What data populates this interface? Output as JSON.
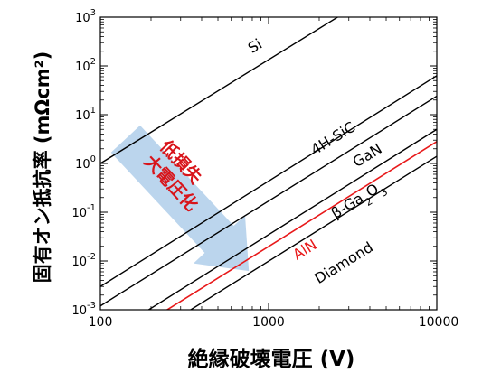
{
  "chart_data": {
    "type": "line",
    "title": "",
    "xlabel": "絶縁破壊電圧 (V)",
    "ylabel": "固有オン抵抗率 (mΩcm²)",
    "xscale": "log",
    "yscale": "log",
    "xlim": [
      100,
      10000
    ],
    "ylim": [
      0.001,
      1000
    ],
    "x_ticks": [
      {
        "value": 100,
        "label": "100"
      },
      {
        "value": 1000,
        "label": "1000"
      },
      {
        "value": 10000,
        "label": "10000"
      }
    ],
    "y_ticks": [
      {
        "value": 0.001,
        "base": "10",
        "exp": "-3"
      },
      {
        "value": 0.01,
        "base": "10",
        "exp": "-2"
      },
      {
        "value": 0.1,
        "base": "10",
        "exp": "-1"
      },
      {
        "value": 1,
        "base": "10",
        "exp": "0"
      },
      {
        "value": 10,
        "base": "10",
        "exp": "1"
      },
      {
        "value": 100,
        "base": "10",
        "exp": "2"
      },
      {
        "value": 1000,
        "base": "10",
        "exp": "3"
      }
    ],
    "grid": false,
    "series": [
      {
        "name": "Si",
        "label": "Si",
        "color": "#000000",
        "x": [
          100,
          10000
        ],
        "y": [
          1.0,
          18000
        ]
      },
      {
        "name": "4H-SiC",
        "label": "4H-SiC",
        "color": "#000000",
        "x": [
          100,
          10000
        ],
        "y": [
          0.003,
          63
        ]
      },
      {
        "name": "GaN",
        "label": "GaN",
        "color": "#000000",
        "x": [
          100,
          10000
        ],
        "y": [
          0.0012,
          24
        ]
      },
      {
        "name": "β-Ga2O3",
        "label": "β-Ga₂O₃",
        "label_parts": [
          "β-Ga",
          "2",
          "O",
          "3"
        ],
        "color": "#000000",
        "x": [
          100,
          10000
        ],
        "y": [
          0.00024,
          5
        ]
      },
      {
        "name": "AlN",
        "label": "AlN",
        "color": "#e8191a",
        "x": [
          100,
          10000
        ],
        "y": [
          0.00014,
          2.8
        ]
      },
      {
        "name": "Diamond",
        "label": "Diamond",
        "color": "#000000",
        "x": [
          100,
          10000
        ],
        "y": [
          7e-05,
          1.4
        ]
      }
    ],
    "annotations": [
      {
        "text": "低損失大電圧化",
        "lines": [
          "低損失",
          "大電圧化"
        ],
        "color": "#d8141a",
        "arrow_color": "#b7d3ec",
        "arrow_direction": "down-right"
      }
    ]
  }
}
